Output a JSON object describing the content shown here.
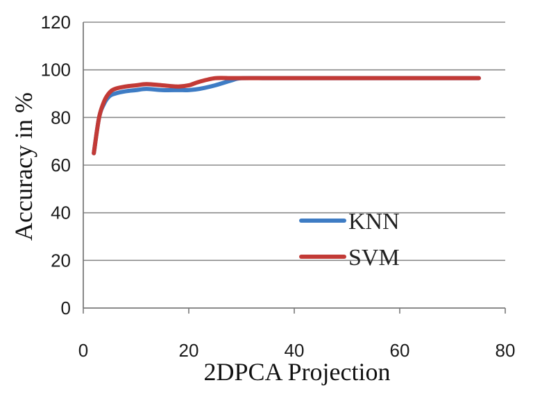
{
  "chart_data": {
    "type": "line",
    "title": "",
    "xlabel": "2DPCA Projection",
    "ylabel": "Accuracy in %",
    "xlim": [
      0,
      80
    ],
    "ylim": [
      0,
      120
    ],
    "x_ticks": [
      0,
      20,
      40,
      60,
      80
    ],
    "y_ticks": [
      0,
      20,
      40,
      60,
      80,
      100,
      120
    ],
    "grid": "horizontal",
    "legend": "center-right",
    "series": [
      {
        "name": "KNN",
        "color": "#3e7cc4",
        "x": [
          2,
          3,
          4,
          5,
          6,
          8,
          10,
          12,
          15,
          18,
          20,
          22,
          25,
          28,
          30,
          35,
          40,
          50,
          60,
          70,
          75
        ],
        "values": [
          65,
          80,
          86,
          89,
          90,
          91,
          91.5,
          92,
          91.5,
          91.5,
          91.5,
          92,
          93.5,
          95.5,
          96.5,
          96.5,
          96.5,
          96.5,
          96.5,
          96.5,
          96.5
        ]
      },
      {
        "name": "SVM",
        "color": "#c23a36",
        "x": [
          2,
          3,
          4,
          5,
          6,
          8,
          10,
          12,
          15,
          18,
          20,
          22,
          25,
          28,
          30,
          35,
          40,
          50,
          60,
          70,
          75
        ],
        "values": [
          65,
          80,
          87,
          90.5,
          92,
          93,
          93.5,
          94,
          93.5,
          93,
          93.5,
          95,
          96.5,
          96.5,
          96.5,
          96.5,
          96.5,
          96.5,
          96.5,
          96.5,
          96.5
        ]
      }
    ]
  }
}
